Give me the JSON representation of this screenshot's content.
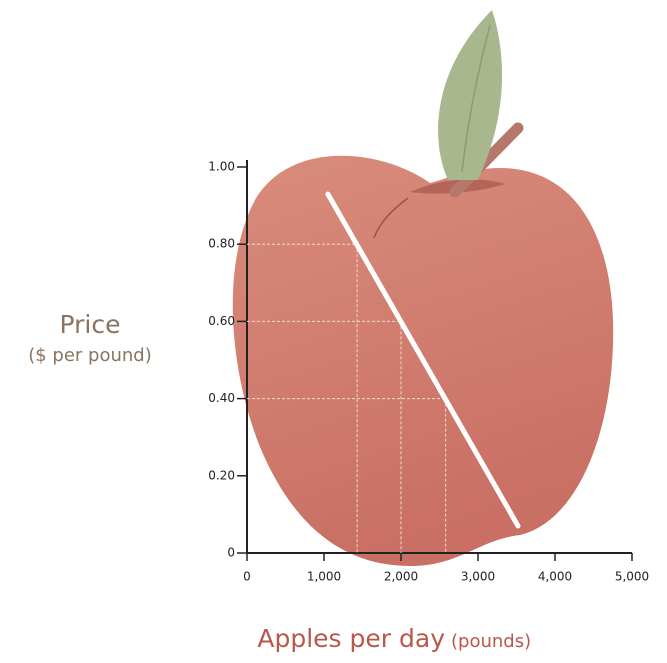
{
  "chart_data": {
    "type": "line",
    "ylabel": "Price",
    "ylabel_unit": "($ per pound)",
    "xlabel": "Apples per day",
    "xlabel_unit": "(pounds)",
    "xlim": [
      0,
      5000
    ],
    "ylim": [
      0,
      1
    ],
    "xticks": [
      0,
      {
        "value": 1000,
        "label": "1,000"
      },
      {
        "value": 2000,
        "label": "2,000"
      },
      {
        "value": 3000,
        "label": "3,000"
      },
      {
        "value": 4000,
        "label": "4,000"
      },
      {
        "value": 5000,
        "label": "5,000"
      }
    ],
    "yticks": [
      0,
      {
        "value": 0.2,
        "label": "0.20"
      },
      {
        "value": 0.4,
        "label": "0.40"
      },
      {
        "value": 0.6,
        "label": "0.60"
      },
      {
        "value": 0.8,
        "label": "0.80"
      },
      {
        "value": 1,
        "label": "1.00"
      }
    ],
    "line": {
      "color": "#ffffff",
      "x": [
        1050,
        3520
      ],
      "y": [
        0.93,
        0.07
      ]
    },
    "guides": {
      "color": "#f3d9d2",
      "x": [
        1430,
        2000,
        2580
      ],
      "y": [
        0.8,
        0.6,
        0.4
      ]
    }
  }
}
